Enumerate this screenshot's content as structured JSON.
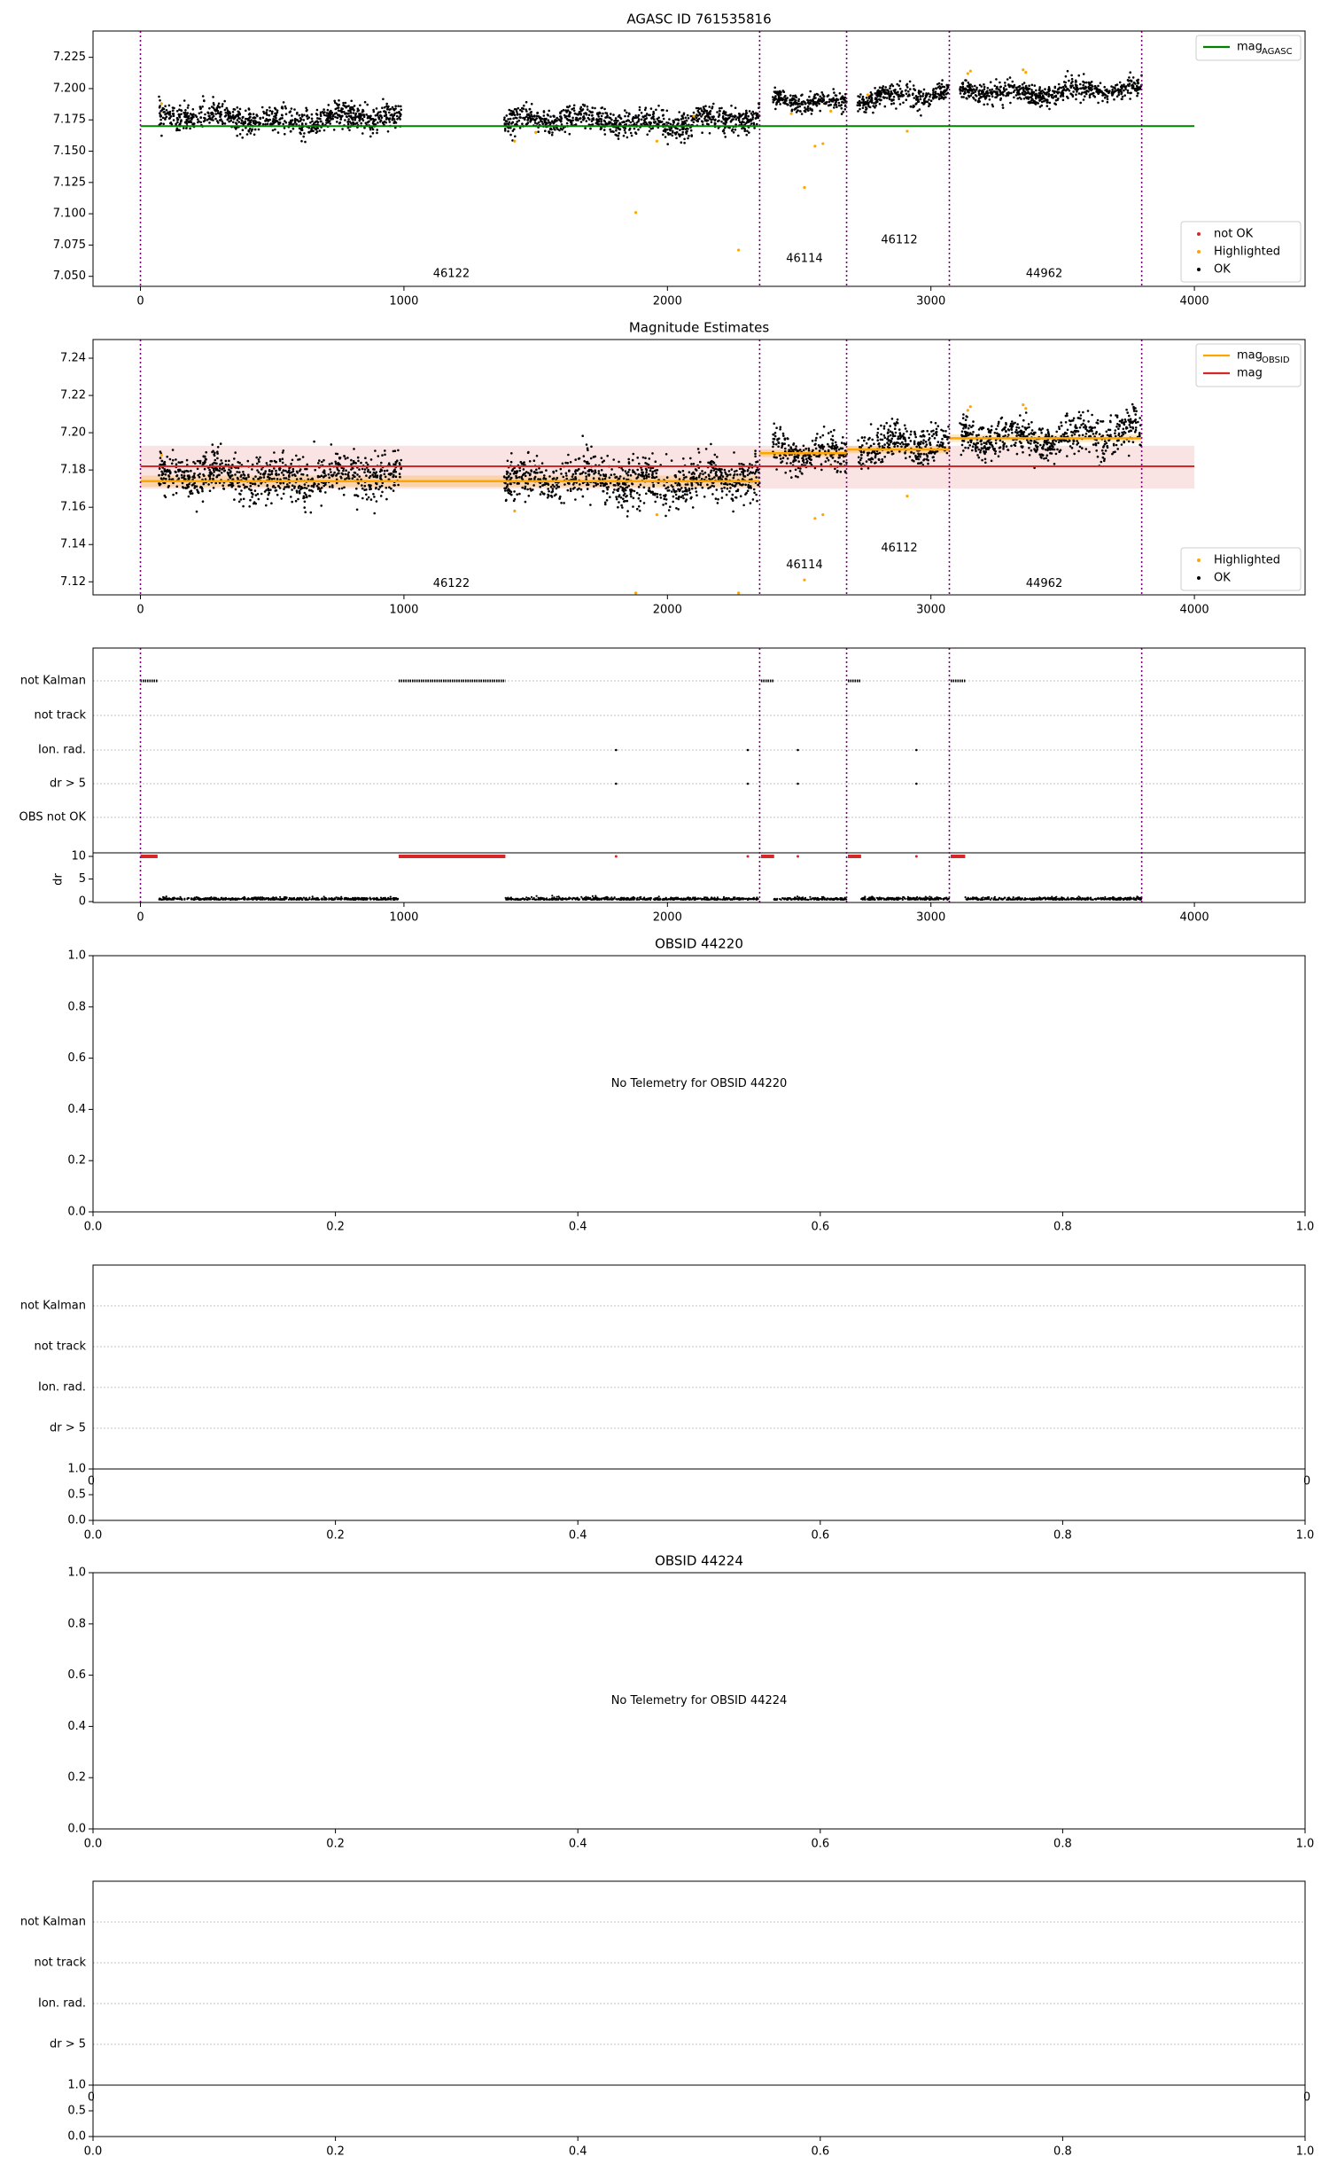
{
  "figure": {
    "intervals": [
      0,
      2350,
      2680,
      3070,
      3800
    ],
    "interval_obsids": [
      {
        "x": 1180,
        "label": "46122"
      },
      {
        "x": 2520,
        "label": "46114"
      },
      {
        "x": 2880,
        "label": "46112"
      },
      {
        "x": 3430,
        "label": "44962"
      }
    ],
    "colors": {
      "ok": "#000000",
      "highlighted": "#ffa500",
      "not_ok": "#d62728",
      "agasc_line": "#008000",
      "mag_line": "#d62728",
      "obsid_line": "#ffa500",
      "interval_line": "#800080",
      "grid": "#b0b0b0"
    }
  },
  "chart_data": [
    {
      "type": "scatter",
      "title": "AGASC ID 761535816",
      "xlabel": "",
      "ylabel": "",
      "xlim": [
        -180,
        4420
      ],
      "ylim": [
        7.042,
        7.246
      ],
      "xticks": [
        0,
        1000,
        2000,
        3000,
        4000
      ],
      "yticks": [
        7.05,
        7.075,
        7.1,
        7.125,
        7.15,
        7.175,
        7.2,
        7.225
      ],
      "ytick_labels": [
        "7.050",
        "7.075",
        "7.100",
        "7.125",
        "7.150",
        "7.175",
        "7.200",
        "7.225"
      ],
      "legend_top": [
        {
          "label": "mag",
          "sub": "AGASC",
          "color": "#008000",
          "kind": "line"
        }
      ],
      "legend_bottom": [
        {
          "label": "not OK",
          "color": "#d62728",
          "kind": "dot"
        },
        {
          "label": "Highlighted",
          "color": "#ffa500",
          "kind": "dot"
        },
        {
          "label": "OK",
          "color": "#000000",
          "kind": "dot"
        }
      ],
      "hline": {
        "y": 7.17,
        "color": "#008000"
      },
      "series": [
        {
          "name": "OK",
          "segments": [
            {
              "x": [
                70,
                990
              ],
              "mean": 7.176,
              "sd": 0.005
            },
            {
              "x": [
                1380,
                2350
              ],
              "mean": 7.174,
              "sd": 0.005
            },
            {
              "x": [
                2400,
                2680
              ],
              "mean": 7.19,
              "sd": 0.004
            },
            {
              "x": [
                2720,
                3070
              ],
              "mean": 7.193,
              "sd": 0.004
            },
            {
              "x": [
                3110,
                3800
              ],
              "mean": 7.198,
              "sd": 0.004
            }
          ]
        },
        {
          "name": "Highlighted",
          "points": [
            [
              80,
              7.188
            ],
            [
              1420,
              7.158
            ],
            [
              1880,
              7.101
            ],
            [
              1960,
              7.158
            ],
            [
              2270,
              7.071
            ],
            [
              2470,
              7.18
            ],
            [
              2520,
              7.121
            ],
            [
              2560,
              7.154
            ],
            [
              2590,
              7.156
            ],
            [
              2620,
              7.182
            ],
            [
              2910,
              7.166
            ],
            [
              3140,
              7.212
            ],
            [
              3150,
              7.214
            ],
            [
              3350,
              7.215
            ],
            [
              3360,
              7.213
            ],
            [
              1500,
              7.165
            ],
            [
              2100,
              7.178
            ],
            [
              2760,
              7.195
            ]
          ]
        }
      ],
      "interval_label_y": 7.052,
      "interval_label_y_list": [
        7.052,
        7.064,
        7.079,
        7.052
      ]
    },
    {
      "type": "scatter",
      "title": "Magnitude Estimates",
      "xlabel": "",
      "ylabel": "",
      "xlim": [
        -180,
        4420
      ],
      "ylim": [
        7.113,
        7.25
      ],
      "xticks": [
        0,
        1000,
        2000,
        3000,
        4000
      ],
      "yticks": [
        7.12,
        7.14,
        7.16,
        7.18,
        7.2,
        7.22,
        7.24
      ],
      "ytick_labels": [
        "7.12",
        "7.14",
        "7.16",
        "7.18",
        "7.20",
        "7.22",
        "7.24"
      ],
      "legend_top": [
        {
          "label": "mag",
          "sub": "OBSID",
          "color": "#ffa500",
          "kind": "line"
        },
        {
          "label": "mag",
          "sub": "",
          "color": "#d62728",
          "kind": "line"
        }
      ],
      "legend_bottom": [
        {
          "label": "Highlighted",
          "color": "#ffa500",
          "kind": "dot"
        },
        {
          "label": "OK",
          "color": "#000000",
          "kind": "dot"
        }
      ],
      "hline": {
        "y": 7.182,
        "color": "#d62728",
        "band": [
          7.17,
          7.193
        ]
      },
      "obsid_steps": [
        {
          "x": [
            0,
            2350
          ],
          "y": 7.174,
          "band": [
            7.171,
            7.177
          ]
        },
        {
          "x": [
            2350,
            2680
          ],
          "y": 7.189,
          "band": [
            7.187,
            7.191
          ]
        },
        {
          "x": [
            2680,
            3070
          ],
          "y": 7.191,
          "band": [
            7.189,
            7.193
          ]
        },
        {
          "x": [
            3070,
            3800
          ],
          "y": 7.197,
          "band": [
            7.195,
            7.199
          ]
        }
      ],
      "series": [
        {
          "name": "OK",
          "segments": [
            {
              "x": [
                70,
                990
              ],
              "mean": 7.176,
              "sd": 0.006
            },
            {
              "x": [
                1380,
                2350
              ],
              "mean": 7.174,
              "sd": 0.006
            },
            {
              "x": [
                2400,
                2680
              ],
              "mean": 7.19,
              "sd": 0.005
            },
            {
              "x": [
                2720,
                3070
              ],
              "mean": 7.193,
              "sd": 0.005
            },
            {
              "x": [
                3110,
                3800
              ],
              "mean": 7.198,
              "sd": 0.005
            }
          ]
        },
        {
          "name": "Highlighted",
          "points": [
            [
              80,
              7.188
            ],
            [
              1420,
              7.158
            ],
            [
              1880,
              7.114
            ],
            [
              1960,
              7.156
            ],
            [
              2270,
              7.114
            ],
            [
              2520,
              7.121
            ],
            [
              2560,
              7.154
            ],
            [
              2590,
              7.156
            ],
            [
              2620,
              7.182
            ],
            [
              2910,
              7.166
            ],
            [
              3140,
              7.212
            ],
            [
              3150,
              7.214
            ],
            [
              3350,
              7.215
            ],
            [
              3360,
              7.213
            ]
          ]
        }
      ],
      "interval_label_y_list": [
        7.119,
        7.129,
        7.138,
        7.119
      ]
    },
    {
      "type": "scatter",
      "title": "",
      "flag_labels": [
        "not Kalman",
        "not track",
        "Ion. rad.",
        "dr > 5",
        "OBS not OK"
      ],
      "xlim": [
        -180,
        4420
      ],
      "xticks": [
        0,
        1000,
        2000,
        3000,
        4000
      ],
      "dr_label": "dr",
      "dr_yticks": [
        0,
        5,
        10
      ],
      "not_kalman_ranges": [
        [
          0,
          65
        ],
        [
          980,
          1385
        ],
        [
          2355,
          2405
        ],
        [
          2685,
          2735
        ],
        [
          3075,
          3130
        ]
      ],
      "ion_rad_points": [
        1805,
        2305,
        2495,
        2945
      ],
      "dr5_points": [
        1805,
        2305,
        2495,
        2945
      ],
      "dr_high_points": [
        1805,
        2305,
        2495,
        2945
      ],
      "dr_segments": [
        [
          70,
          980
        ],
        [
          1385,
          2350
        ],
        [
          2405,
          2680
        ],
        [
          2735,
          3070
        ],
        [
          3130,
          3800
        ]
      ]
    },
    {
      "type": "scatter",
      "title": "OBSID 44220",
      "empty_message": "No Telemetry for OBSID 44220",
      "xticks": [
        "0.0",
        "0.2",
        "0.4",
        "0.6",
        "0.8",
        "1.0"
      ],
      "yticks": [
        "0.0",
        "0.2",
        "0.4",
        "0.6",
        "0.8",
        "1.0"
      ]
    },
    {
      "type": "scatter",
      "title": "",
      "flag_labels": [
        "not Kalman",
        "not track",
        "Ion. rad.",
        "dr > 5"
      ],
      "bottom_yticks": [
        "0.0",
        "0.5",
        "1.0"
      ],
      "xticks": [
        "0.0",
        "0.2",
        "0.4",
        "0.6",
        "0.8",
        "1.0"
      ],
      "clipped_left": "0",
      "clipped_right": "0"
    },
    {
      "type": "scatter",
      "title": "OBSID 44224",
      "empty_message": "No Telemetry for OBSID 44224",
      "xticks": [
        "0.0",
        "0.2",
        "0.4",
        "0.6",
        "0.8",
        "1.0"
      ],
      "yticks": [
        "0.0",
        "0.2",
        "0.4",
        "0.6",
        "0.8",
        "1.0"
      ]
    },
    {
      "type": "scatter",
      "title": "",
      "flag_labels": [
        "not Kalman",
        "not track",
        "Ion. rad.",
        "dr > 5"
      ],
      "bottom_yticks": [
        "0.0",
        "0.5",
        "1.0"
      ],
      "xticks": [
        "0.0",
        "0.2",
        "0.4",
        "0.6",
        "0.8",
        "1.0"
      ],
      "clipped_left": "0",
      "clipped_right": "0"
    }
  ]
}
